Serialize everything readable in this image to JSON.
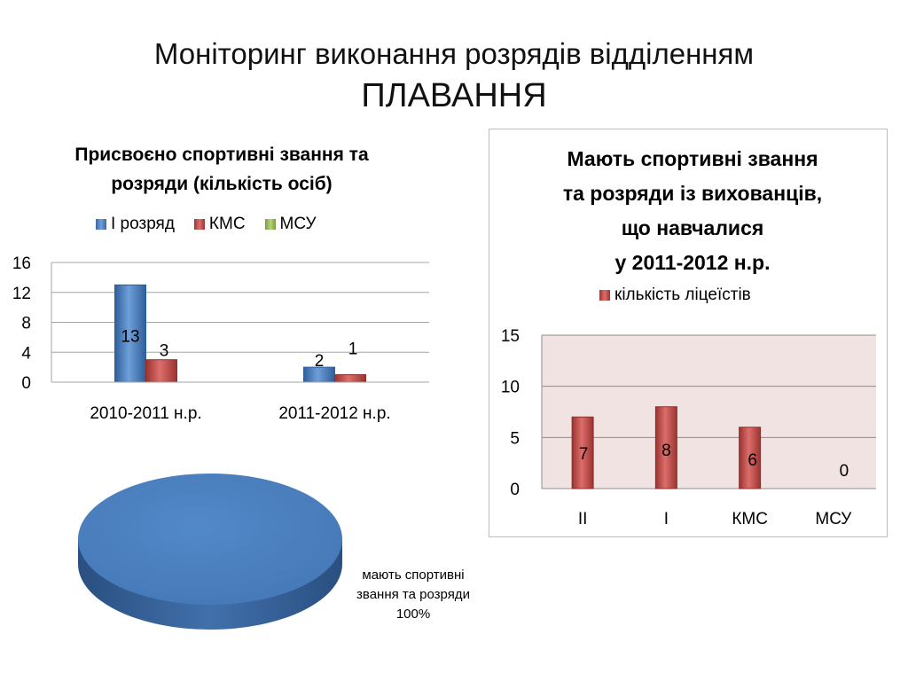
{
  "slide": {
    "title_line1": "Моніторинг виконання розрядів відділенням",
    "title_line2": "ПЛАВАННЯ"
  },
  "chart_data": [
    {
      "type": "bar",
      "title_line1": "Присвоєно спортивні звання та",
      "title_line2": "розряди (кількість осіб)",
      "categories": [
        "2010-2011 н.р.",
        "2011-2012 н.р."
      ],
      "series": [
        {
          "name": "І розряд",
          "color": "#4f81bd",
          "values": [
            13,
            2
          ]
        },
        {
          "name": "КМС",
          "color": "#c0504d",
          "values": [
            3,
            1
          ]
        },
        {
          "name": "МСУ",
          "color": "#9bbb59",
          "values": [
            null,
            null
          ]
        }
      ],
      "ylim": [
        0,
        16
      ],
      "yticks": [
        0,
        4,
        8,
        12,
        16
      ],
      "grid": true,
      "legend_position": "top"
    },
    {
      "type": "bar",
      "title_line1": "Мають спортивні звання",
      "title_line2": "та розряди із вихованців,",
      "title_line3": "що навчалися",
      "title_line4": "у 2011-2012 н.р.",
      "categories": [
        "ІІ",
        "І",
        "КМС",
        "МСУ"
      ],
      "series": [
        {
          "name": "кількість ліцеїстів",
          "color": "#c0504d",
          "values": [
            7,
            8,
            6,
            0
          ]
        }
      ],
      "ylim": [
        0,
        15
      ],
      "yticks": [
        0,
        5,
        10,
        15
      ],
      "grid": true,
      "legend_position": "top",
      "plot_background": "#f2e3e3"
    },
    {
      "type": "pie",
      "labels": [
        "мають спортивні звання та розряди"
      ],
      "values": [
        100
      ],
      "percent_label": "100%",
      "label_line1": "мають спортивні",
      "label_line2": "звання та розряди",
      "color": "#4f81bd"
    }
  ]
}
